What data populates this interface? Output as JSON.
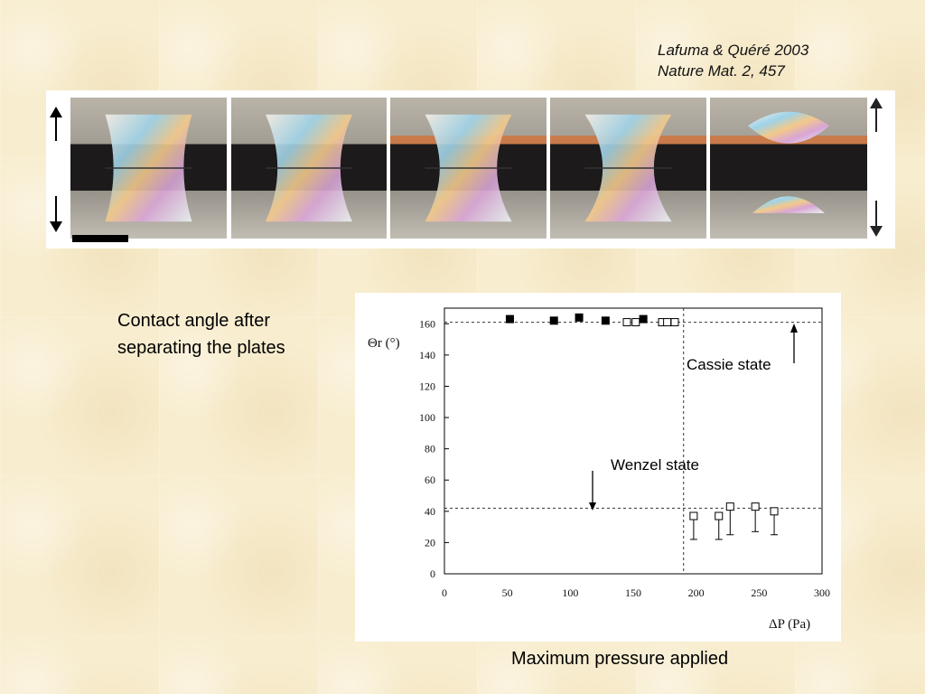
{
  "citation": {
    "line1": "Lafuma & Quéré 2003",
    "line2": "Nature Mat. 2, 457"
  },
  "captions": {
    "left_line1": "Contact angle after",
    "left_line2": "separating the plates",
    "bottom": "Maximum pressure applied"
  },
  "photo_strip": {
    "frames": [
      {
        "stage": "compressed",
        "neck": 0.62
      },
      {
        "stage": "compressed",
        "neck": 0.45
      },
      {
        "stage": "compressed",
        "neck": 0.32
      },
      {
        "stage": "stretched",
        "neck": 0.18
      },
      {
        "stage": "separated",
        "neck": 0.0
      }
    ],
    "arrows": [
      "arrow-up-icon",
      "arrow-down-icon"
    ]
  },
  "chart_data": {
    "type": "scatter",
    "ylabel": "Θr (°)",
    "xlabel": "ΔP (Pa)",
    "xlim": [
      0,
      300
    ],
    "ylim": [
      0,
      170
    ],
    "x_ticks": [
      "0",
      "50",
      "100",
      "150",
      "200",
      "250",
      "300"
    ],
    "y_ticks": [
      "0",
      "20",
      "40",
      "60",
      "80",
      "100",
      "120",
      "140",
      "160"
    ],
    "reference_lines": [
      {
        "type": "horizontal",
        "y": 161
      },
      {
        "type": "horizontal",
        "y": 42
      },
      {
        "type": "vertical",
        "x": 190
      }
    ],
    "series": [
      {
        "marker": "filled-square",
        "points": [
          [
            52,
            163
          ],
          [
            87,
            162
          ],
          [
            107,
            164
          ],
          [
            128,
            162
          ],
          [
            158,
            163
          ]
        ]
      },
      {
        "marker": "open-square",
        "points": [
          [
            145,
            161
          ],
          [
            152,
            161
          ],
          [
            173,
            161
          ],
          [
            177,
            161
          ],
          [
            183,
            161
          ]
        ]
      },
      {
        "marker": "open-square-errorbar",
        "points": [
          {
            "x": 198,
            "y": 37,
            "low": 22
          },
          {
            "x": 218,
            "y": 37,
            "low": 22
          },
          {
            "x": 227,
            "y": 43,
            "low": 25
          },
          {
            "x": 247,
            "y": 43,
            "low": 27
          },
          {
            "x": 262,
            "y": 40,
            "low": 25
          }
        ]
      }
    ],
    "annotations": {
      "cassie": "Cassie state",
      "wenzel": "Wenzel state"
    },
    "grid": false
  }
}
